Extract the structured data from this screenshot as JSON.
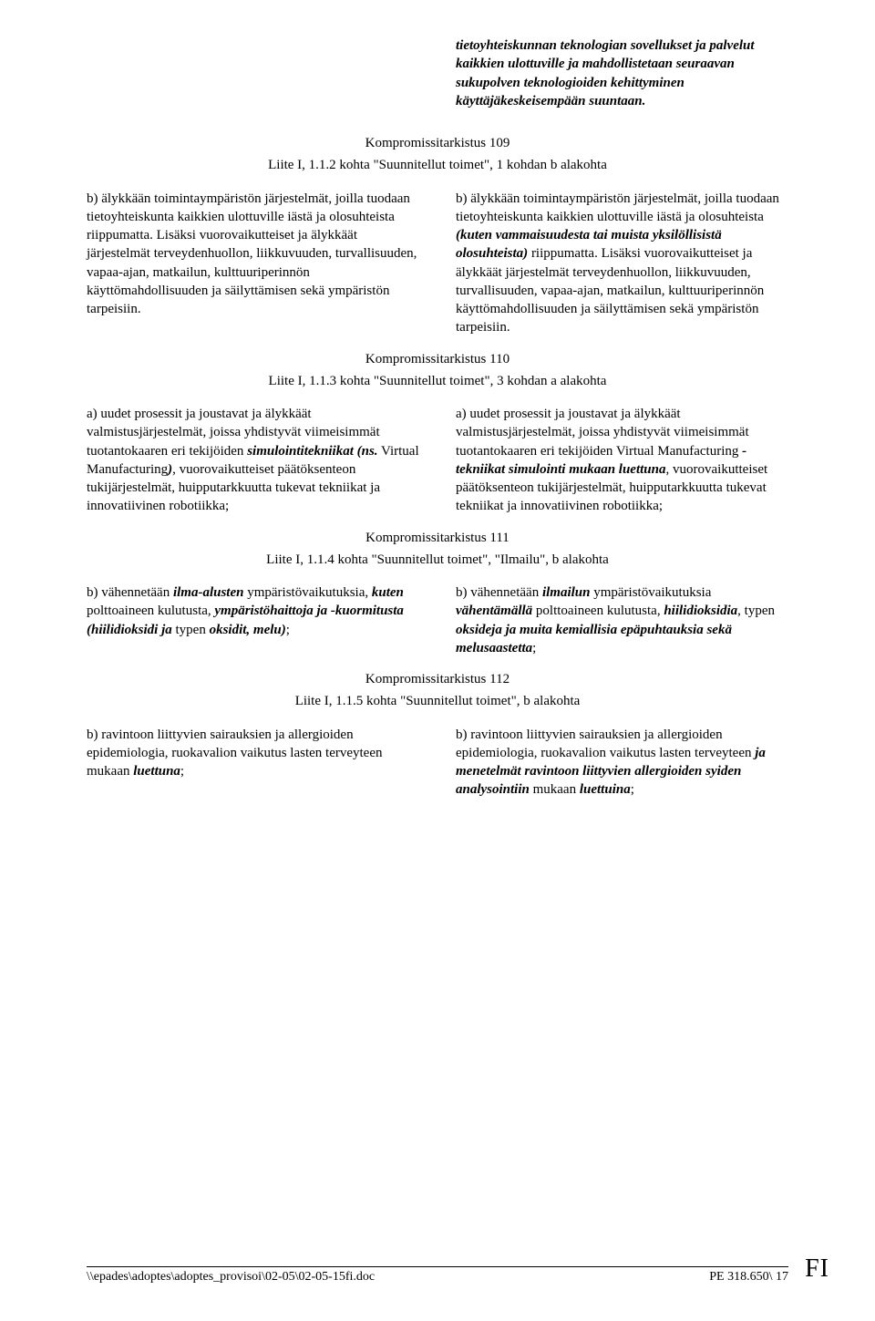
{
  "intro": "tietoyhteiskunnan teknologian sovellukset ja palvelut kaikkien ulottuville ja mahdollistetaan seuraavan sukupolven teknologioiden kehittyminen käyttäjäkeskeisempään suuntaan.",
  "sections": [
    {
      "heading": "Kompromissitarkistus 109",
      "sub": "Liite I, 1.1.2 kohta \"Suunnitellut toimet\", 1 kohdan b alakohta"
    },
    {
      "heading": "Kompromissitarkistus 110",
      "sub": "Liite I, 1.1.3 kohta \"Suunnitellut toimet\", 3 kohdan a alakohta"
    },
    {
      "heading": "Kompromissitarkistus 111",
      "sub": "Liite I, 1.1.4 kohta \"Suunnitellut toimet\", \"Ilmailu\", b alakohta"
    },
    {
      "heading": "Kompromissitarkistus 112",
      "sub": "Liite I, 1.1.5 kohta \"Suunnitellut toimet\", b alakohta"
    }
  ],
  "block109": {
    "left": "b) älykkään toimintaympäristön järjestelmät, joilla tuodaan tietoyhteiskunta kaikkien ulottuville iästä ja olosuhteista riippumatta. Lisäksi vuorovaikutteiset ja älykkäät järjestelmät terveydenhuollon, liikkuvuuden, turvallisuuden, vapaa-ajan, matkailun, kulttuuriperinnön käyttömahdollisuuden ja säilyttämisen sekä ympäristön tarpeisiin.",
    "right": {
      "pre": "b) älykkään toimintaympäristön järjestelmät, joilla tuodaan tietoyhteiskunta kaikkien ulottuville iästä ja olosuhteista ",
      "bi1": "(kuten vammaisuudesta tai muista yksilöllisistä olosuhteista)",
      "post": " riippumatta. Lisäksi vuorovaikutteiset ja älykkäät järjestelmät terveydenhuollon, liikkuvuuden, turvallisuuden, vapaa-ajan, matkailun, kulttuuriperinnön käyttömahdollisuuden ja säilyttämisen sekä ympäristön tarpeisiin."
    }
  },
  "block110": {
    "left": {
      "t1": "a) uudet prosessit ja joustavat ja älykkäät valmistusjärjestelmät, joissa yhdistyvät viimeisimmät tuotantokaaren eri tekijöiden ",
      "bi1": "simulointitekniikat (ns.",
      "t2": " Virtual Manufacturing",
      "bi2": ")",
      "t3": ", vuorovaikutteiset päätöksenteon tukijärjestelmät, huipputarkkuutta tukevat tekniikat ja innovatiivinen robotiikka;"
    },
    "right": {
      "t1": "a) uudet prosessit ja joustavat ja älykkäät valmistusjärjestelmät, joissa yhdistyvät viimeisimmät tuotantokaaren eri tekijöiden Virtual Manufacturing ",
      "bi1": "-tekniikat simulointi mukaan luettuna",
      "t2": ", vuorovaikutteiset päätöksenteon tukijärjestelmät, huipputarkkuutta tukevat tekniikat ja innovatiivinen robotiikka;"
    }
  },
  "block111": {
    "left": {
      "t1": "b) vähennetään ",
      "bi1": "ilma-alusten",
      "t2": " ympäristövaikutuksia, ",
      "bi2": "kuten",
      "t3": " polttoaineen kulutusta, ",
      "bi3": "ympäristöhaittoja ja -kuormitusta (hiilidioksidi ja",
      "t4": " typen ",
      "bi4": "oksidit, melu)",
      "t5": ";"
    },
    "right": {
      "t1": "b) vähennetään ",
      "bi1": "ilmailun",
      "t2": " ympäristövaikutuksia ",
      "bi2": "vähentämällä",
      "t3": " polttoaineen kulutusta, ",
      "bi3": "hiilidioksidia",
      "t4": ", typen ",
      "bi4": "oksideja ja muita kemiallisia epäpuhtauksia sekä melusaastetta",
      "t5": ";"
    }
  },
  "block112": {
    "left": {
      "t1": "b) ravintoon liittyvien sairauksien ja allergioiden epidemiologia, ruokavalion vaikutus lasten terveyteen mukaan ",
      "bi1": "luettuna",
      "t2": ";"
    },
    "right": {
      "t1": "b) ravintoon liittyvien sairauksien ja allergioiden epidemiologia, ruokavalion vaikutus lasten terveyteen ",
      "bi1": "ja menetelmät ravintoon liittyvien allergioiden syiden analysointiin",
      "t2": " mukaan ",
      "bi2": "luettuina",
      "t3": ";"
    }
  },
  "footer": {
    "left": "\\\\epades\\adoptes\\adoptes_provisoi\\02-05\\02-05-15fi.doc",
    "right": "PE 318.650\\ 17"
  },
  "fi": "FI"
}
